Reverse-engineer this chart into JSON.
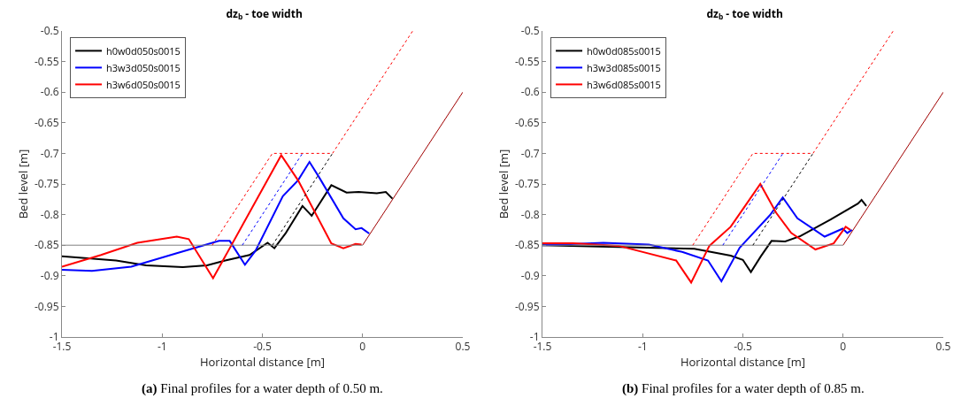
{
  "chart_data": [
    {
      "type": "line",
      "title": "dz$_{b}$ - toe width",
      "xlabel": "Horizontal distance [m]",
      "ylabel": "Bed level [m]",
      "annotations": [
        "(a) Final profiles for a water depth of 0.50 m."
      ],
      "xlim": [
        -1.5,
        0.5
      ],
      "xticks": [
        -1.5,
        -1,
        -0.5,
        0,
        0.5
      ],
      "ylim": [
        -1,
        -0.5
      ],
      "yticks": [
        -1,
        -0.95,
        -0.9,
        -0.85,
        -0.8,
        -0.75,
        -0.7,
        -0.65,
        -0.6,
        -0.55,
        -0.5
      ],
      "grid": false,
      "legend": "top left",
      "marker": "none",
      "line_style": "solid",
      "series": [
        {
          "name": "h0w0d050s0015",
          "color": "#000000",
          "x": [
            -1.5,
            -1.23,
            -1.08,
            -0.897,
            -0.776,
            -0.685,
            -0.564,
            -0.474,
            -0.44,
            -0.383,
            -0.3,
            -0.254,
            -0.156,
            -0.08,
            -0.02,
            0.071,
            0.116,
            0.149
          ],
          "values": [
            -0.868,
            -0.875,
            -0.883,
            -0.886,
            -0.883,
            -0.875,
            -0.866,
            -0.846,
            -0.855,
            -0.83,
            -0.786,
            -0.802,
            -0.752,
            -0.764,
            -0.763,
            -0.765,
            -0.763,
            -0.774
          ]
        },
        {
          "name": "h3w3d050s0015",
          "color": "#0000ff",
          "x": [
            -1.5,
            -1.35,
            -1.154,
            -0.927,
            -0.716,
            -0.663,
            -0.587,
            -0.534,
            -0.398,
            -0.322,
            -0.265,
            -0.217,
            -0.096,
            -0.035,
            -0.005,
            0.033
          ],
          "values": [
            -0.89,
            -0.892,
            -0.885,
            -0.863,
            -0.843,
            -0.843,
            -0.882,
            -0.859,
            -0.77,
            -0.744,
            -0.714,
            -0.739,
            -0.806,
            -0.824,
            -0.822,
            -0.831
          ]
        },
        {
          "name": "h3w6d050s0015",
          "color": "#ff0000",
          "x": [
            -1.5,
            -1.305,
            -1.124,
            -0.927,
            -0.867,
            -0.746,
            -0.406,
            -0.322,
            -0.156,
            -0.096,
            -0.035,
            -0.005
          ],
          "values": [
            -0.885,
            -0.866,
            -0.846,
            -0.836,
            -0.84,
            -0.904,
            -0.703,
            -0.744,
            -0.847,
            -0.855,
            -0.848,
            -0.849
          ]
        },
        {
          "color": "#a00000",
          "x": [
            0,
            0.5
          ],
          "values": [
            -0.85,
            -0.6
          ]
        },
        {
          "color": "#808080",
          "x": [
            -1.5,
            0
          ],
          "values": [
            -0.85,
            -0.85
          ]
        },
        {
          "color": "#000000",
          "line_style": "dotted",
          "x": [
            -0.45,
            -0.15
          ],
          "values": [
            -0.85,
            -0.7
          ]
        },
        {
          "color": "#0000ff",
          "line_style": "dotted",
          "x": [
            -0.6,
            -0.3
          ],
          "values": [
            -0.85,
            -0.7
          ]
        },
        {
          "color": "#ff0000",
          "line_style": "dotted",
          "x": [
            -0.75,
            -0.45,
            -0.15,
            0.25
          ],
          "values": [
            -0.85,
            -0.7,
            -0.7,
            -0.5
          ]
        }
      ]
    },
    {
      "type": "line",
      "title": "dz$_{b}$ - toe width",
      "xlabel": "Horizontal distance [m]",
      "ylabel": "Bed level [m]",
      "annotations": [
        "(b) Final profiles for a water depth of 0.85 m."
      ],
      "xlim": [
        -1.5,
        0.5
      ],
      "xticks": [
        -1.5,
        -1,
        -0.5,
        0,
        0.5
      ],
      "ylim": [
        -1,
        -0.5
      ],
      "yticks": [
        -1,
        -0.95,
        -0.9,
        -0.85,
        -0.8,
        -0.75,
        -0.7,
        -0.65,
        -0.6,
        -0.55,
        -0.5
      ],
      "grid": false,
      "legend": "top left",
      "marker": "none",
      "line_style": "solid",
      "series": [
        {
          "name": "h0w0d085s0015",
          "color": "#000000",
          "x": [
            -1.5,
            -0.742,
            -0.561,
            -0.5,
            -0.46,
            -0.41,
            -0.357,
            -0.289,
            -0.213,
            -0.062,
            0.074,
            0.092,
            0.116
          ],
          "values": [
            -0.85,
            -0.856,
            -0.867,
            -0.874,
            -0.894,
            -0.868,
            -0.843,
            -0.844,
            -0.835,
            -0.808,
            -0.782,
            -0.776,
            -0.786
          ]
        },
        {
          "name": "h3w3d085s0015",
          "color": "#0000ff",
          "x": [
            -1.5,
            -1.196,
            -0.969,
            -0.803,
            -0.674,
            -0.607,
            -0.516,
            -0.365,
            -0.301,
            -0.228,
            -0.092,
            -0.002,
            0.021,
            0.044
          ],
          "values": [
            -0.85,
            -0.846,
            -0.849,
            -0.861,
            -0.875,
            -0.909,
            -0.854,
            -0.801,
            -0.772,
            -0.806,
            -0.836,
            -0.823,
            -0.83,
            -0.825
          ]
        },
        {
          "name": "h3w6d085s0015",
          "color": "#ff0000",
          "x": [
            -1.5,
            -1.347,
            -1.12,
            -0.833,
            -0.758,
            -0.667,
            -0.561,
            -0.47,
            -0.413,
            -0.334,
            -0.259,
            -0.138,
            -0.047,
            0.013,
            0.036
          ],
          "values": [
            -0.847,
            -0.847,
            -0.851,
            -0.875,
            -0.911,
            -0.851,
            -0.82,
            -0.777,
            -0.75,
            -0.797,
            -0.83,
            -0.857,
            -0.847,
            -0.82,
            -0.825
          ]
        },
        {
          "color": "#a00000",
          "x": [
            0,
            0.5
          ],
          "values": [
            -0.85,
            -0.6
          ]
        },
        {
          "color": "#808080",
          "x": [
            -1.5,
            0
          ],
          "values": [
            -0.85,
            -0.85
          ]
        },
        {
          "color": "#000000",
          "line_style": "dotted",
          "x": [
            -0.45,
            -0.15
          ],
          "values": [
            -0.85,
            -0.7
          ]
        },
        {
          "color": "#0000ff",
          "line_style": "dotted",
          "x": [
            -0.6,
            -0.3
          ],
          "values": [
            -0.85,
            -0.7
          ]
        },
        {
          "color": "#ff0000",
          "line_style": "dotted",
          "x": [
            -0.75,
            -0.45,
            -0.15,
            0.25
          ],
          "values": [
            -0.85,
            -0.7,
            -0.7,
            -0.5
          ]
        }
      ]
    }
  ]
}
